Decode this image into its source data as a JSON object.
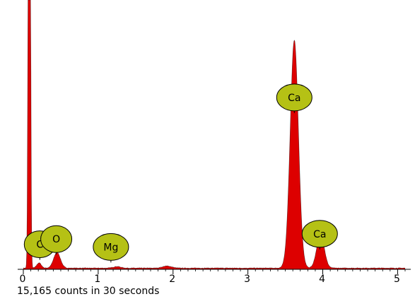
{
  "chart_data": {
    "type": "area",
    "title": "",
    "xlabel": "",
    "ylabel": "",
    "xlim": [
      0,
      5.1
    ],
    "ylim": [
      0,
      100
    ],
    "grid": false,
    "x_ticks": [
      0,
      1,
      2,
      3,
      4,
      5
    ],
    "fill_color": "#dd0000",
    "outline_color": "#000000",
    "label_fill_color": "#b5c115",
    "peaks": [
      {
        "x": 0.08,
        "y": 400,
        "width": 0.012
      },
      {
        "x": 0.21,
        "y": 2.0,
        "width": 0.03
      },
      {
        "x": 0.45,
        "y": 6.0,
        "width": 0.045
      },
      {
        "x": 1.25,
        "y": 0.6,
        "width": 0.05
      },
      {
        "x": 1.92,
        "y": 0.8,
        "width": 0.06
      },
      {
        "x": 3.62,
        "y": 87,
        "width": 0.055
      },
      {
        "x": 3.97,
        "y": 13,
        "width": 0.05
      }
    ],
    "peak_labels": [
      {
        "label": "C",
        "x": 0.22,
        "y": 9
      },
      {
        "label": "O",
        "x": 0.44,
        "y": 11
      },
      {
        "label": "Mg",
        "x": 1.17,
        "y": 8
      },
      {
        "label": "Ca",
        "x": 3.62,
        "y": 65
      },
      {
        "label": "Ca",
        "x": 3.96,
        "y": 13
      }
    ],
    "caption": "15,165 counts in 30 seconds"
  }
}
